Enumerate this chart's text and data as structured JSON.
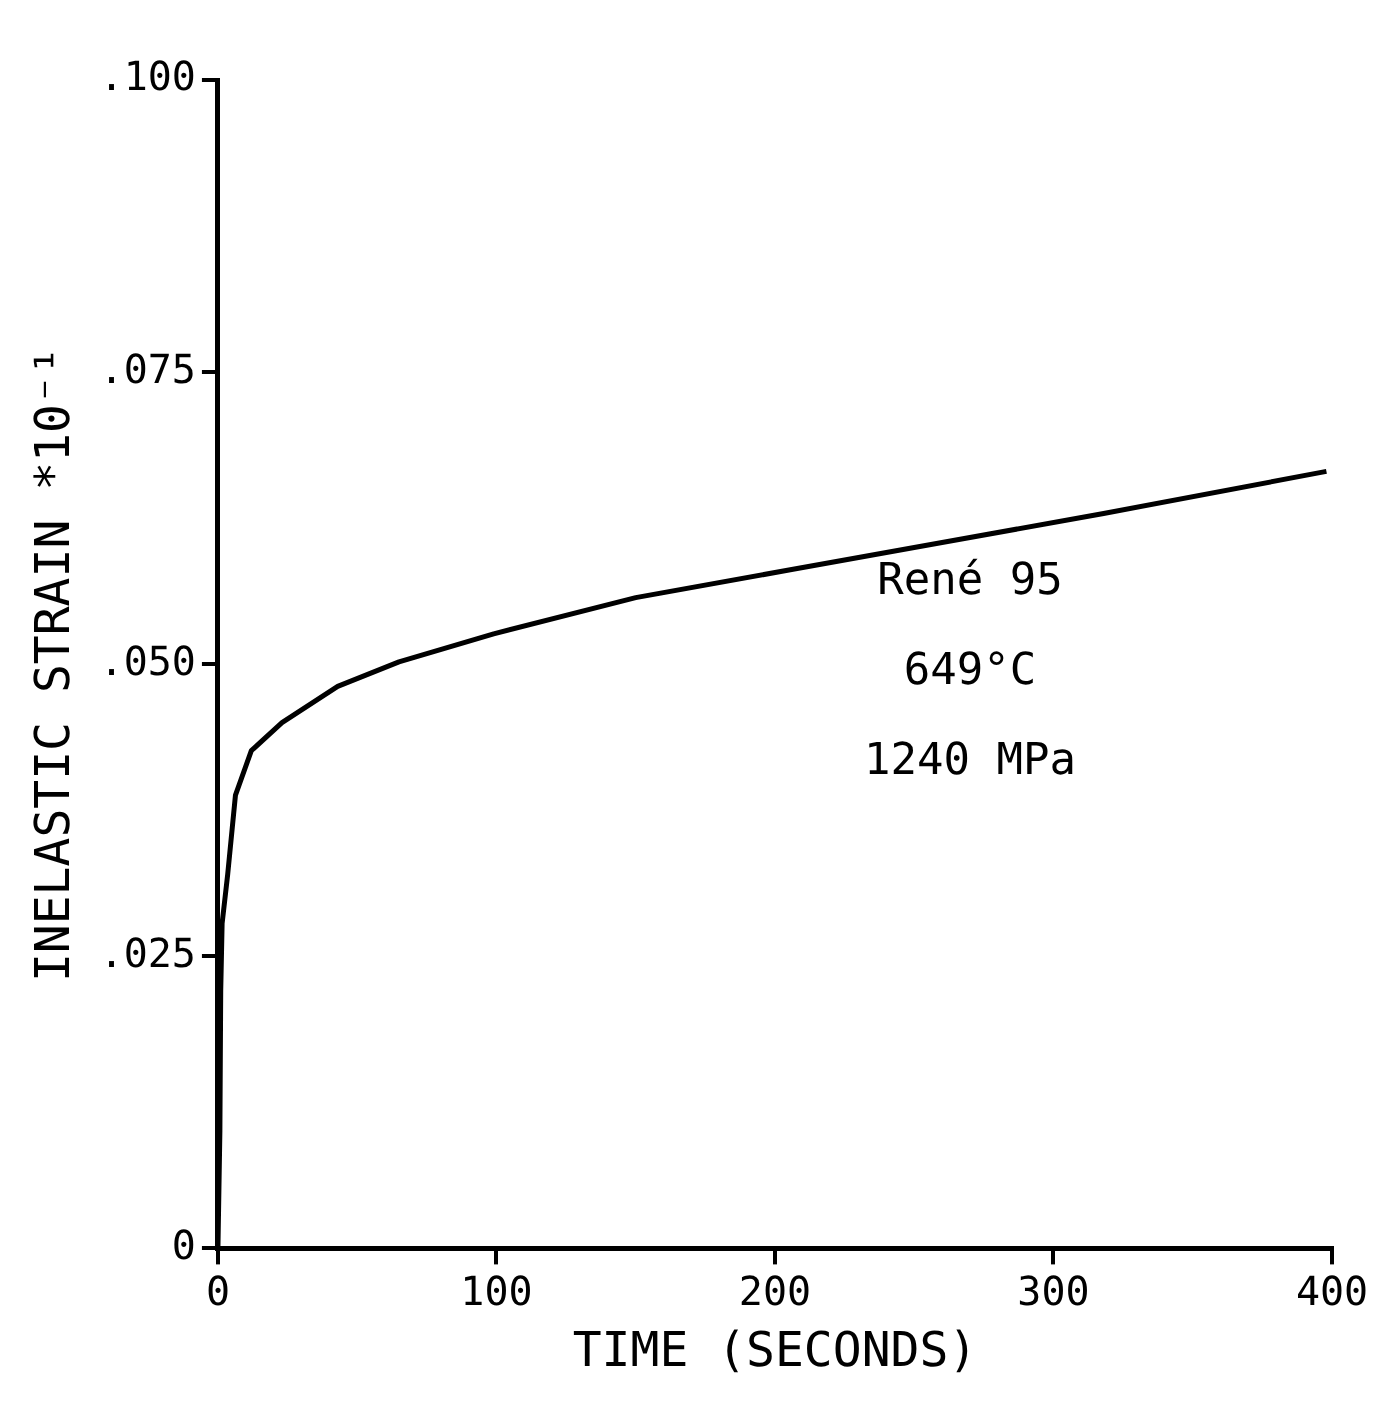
{
  "chart_data": {
    "type": "line",
    "xlabel": "TIME (SECONDS)",
    "ylabel": "INELASTIC STRAIN *10⁻¹",
    "annotations": [
      "René 95",
      "649°C",
      "1240 MPa"
    ],
    "series": [
      {
        "color": "#000000",
        "x": [
          0,
          0.7,
          1,
          1.5,
          3.5,
          6.3,
          12,
          23,
          43,
          65,
          99,
          150,
          206,
          262,
          318,
          398
        ],
        "values": [
          0,
          0.01,
          0.022,
          0.0278,
          0.032,
          0.0388,
          0.0426,
          0.045,
          0.0481,
          0.0502,
          0.0526,
          0.0557,
          0.0581,
          0.0605,
          0.0629,
          0.0665
        ]
      }
    ],
    "xlim": [
      0,
      400
    ],
    "xticks": [
      0,
      100,
      200,
      300,
      400
    ],
    "ylim": [
      0,
      0.1
    ],
    "yticks": [
      {
        "value": 0,
        "label": "0"
      },
      {
        "value": 0.025,
        "label": ".025"
      },
      {
        "value": 0.05,
        "label": ".050"
      },
      {
        "value": 0.075,
        "label": ".075"
      },
      {
        "value": 0.1,
        "label": ".100"
      }
    ],
    "grid": false,
    "legend": false,
    "marker": "none",
    "line_style": "solid"
  }
}
